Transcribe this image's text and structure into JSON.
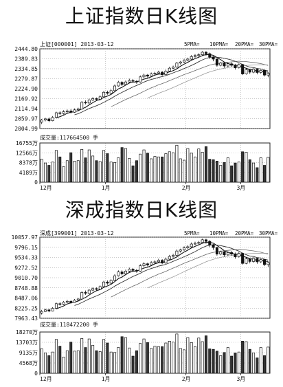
{
  "chart_data": [
    {
      "type": "candlestick",
      "title": "上证指数日K线图",
      "header_label": "上证[000001] 2013-03-12",
      "ma_legend": [
        "5PMA=",
        "10PMA=",
        "20PMA=",
        "30PMA="
      ],
      "price_ticks": [
        "2444.80",
        "2389.83",
        "2334.85",
        "2279.87",
        "2224.90",
        "2169.92",
        "2114.94",
        "2059.97",
        "2004.99"
      ],
      "ylim": [
        2004.99,
        2444.8
      ],
      "volume_title": "成交量:117664500 手",
      "volume_ticks": [
        "16755万",
        "12566万",
        "8378万",
        "4189万",
        "0"
      ],
      "volume_ylim": [
        0,
        16755
      ],
      "month_labels": [
        {
          "label": "12月",
          "index": 0
        },
        {
          "label": "1月",
          "index": 18
        },
        {
          "label": "2月",
          "index": 40
        },
        {
          "label": "3月",
          "index": 55
        }
      ],
      "candles": [
        [
          2040,
          2052,
          2030,
          2058
        ],
        [
          2052,
          2058,
          2045,
          2064
        ],
        [
          2058,
          2048,
          2040,
          2066
        ],
        [
          2048,
          2066,
          2045,
          2074
        ],
        [
          2066,
          2092,
          2062,
          2098
        ],
        [
          2092,
          2088,
          2080,
          2100
        ],
        [
          2088,
          2098,
          2082,
          2106
        ],
        [
          2098,
          2102,
          2090,
          2110
        ],
        [
          2102,
          2095,
          2088,
          2112
        ],
        [
          2095,
          2108,
          2092,
          2116
        ],
        [
          2108,
          2112,
          2100,
          2120
        ],
        [
          2112,
          2150,
          2110,
          2156
        ],
        [
          2150,
          2146,
          2138,
          2160
        ],
        [
          2146,
          2162,
          2140,
          2170
        ],
        [
          2162,
          2170,
          2156,
          2178
        ],
        [
          2170,
          2166,
          2158,
          2176
        ],
        [
          2166,
          2180,
          2160,
          2188
        ],
        [
          2180,
          2205,
          2176,
          2212
        ],
        [
          2205,
          2200,
          2192,
          2214
        ],
        [
          2200,
          2214,
          2196,
          2222
        ],
        [
          2214,
          2240,
          2210,
          2248
        ],
        [
          2240,
          2260,
          2236,
          2268
        ],
        [
          2260,
          2248,
          2240,
          2266
        ],
        [
          2248,
          2262,
          2244,
          2270
        ],
        [
          2262,
          2270,
          2256,
          2280
        ],
        [
          2270,
          2266,
          2258,
          2278
        ],
        [
          2266,
          2262,
          2252,
          2272
        ],
        [
          2262,
          2290,
          2258,
          2298
        ],
        [
          2290,
          2300,
          2284,
          2308
        ],
        [
          2300,
          2294,
          2286,
          2306
        ],
        [
          2294,
          2306,
          2290,
          2314
        ],
        [
          2306,
          2310,
          2300,
          2318
        ],
        [
          2310,
          2316,
          2304,
          2324
        ],
        [
          2316,
          2302,
          2296,
          2322
        ],
        [
          2302,
          2322,
          2298,
          2330
        ],
        [
          2322,
          2338,
          2318,
          2346
        ],
        [
          2338,
          2344,
          2332,
          2352
        ],
        [
          2344,
          2366,
          2340,
          2372
        ],
        [
          2366,
          2372,
          2358,
          2378
        ],
        [
          2372,
          2382,
          2366,
          2390
        ],
        [
          2382,
          2388,
          2376,
          2396
        ],
        [
          2388,
          2402,
          2382,
          2410
        ],
        [
          2402,
          2408,
          2396,
          2416
        ],
        [
          2408,
          2412,
          2400,
          2420
        ],
        [
          2412,
          2426,
          2406,
          2432
        ],
        [
          2426,
          2418,
          2406,
          2432
        ],
        [
          2418,
          2400,
          2390,
          2424
        ],
        [
          2400,
          2388,
          2376,
          2404
        ],
        [
          2388,
          2354,
          2346,
          2392
        ],
        [
          2354,
          2366,
          2348,
          2372
        ],
        [
          2366,
          2350,
          2340,
          2370
        ],
        [
          2350,
          2362,
          2344,
          2368
        ],
        [
          2362,
          2354,
          2346,
          2370
        ],
        [
          2354,
          2340,
          2330,
          2362
        ],
        [
          2340,
          2358,
          2336,
          2364
        ],
        [
          2358,
          2306,
          2300,
          2362
        ],
        [
          2306,
          2330,
          2302,
          2336
        ],
        [
          2330,
          2316,
          2306,
          2334
        ],
        [
          2316,
          2332,
          2310,
          2338
        ],
        [
          2332,
          2314,
          2304,
          2336
        ],
        [
          2314,
          2326,
          2308,
          2330
        ],
        [
          2326,
          2300,
          2292,
          2330
        ],
        [
          2300,
          2310,
          2288,
          2316
        ]
      ],
      "volumes": [
        9800,
        8200,
        7200,
        8600,
        13600,
        10800,
        6600,
        9200,
        12600,
        9000,
        9200,
        14000,
        10400,
        13800,
        11200,
        9200,
        8800,
        13600,
        12200,
        8600,
        8400,
        10400,
        14800,
        14400,
        10200,
        7000,
        9200,
        12000,
        13800,
        12400,
        10000,
        11000,
        10800,
        10800,
        12200,
        13000,
        12600,
        15800,
        10000,
        9400,
        14400,
        12400,
        10800,
        14200,
        12800,
        15200,
        9800,
        9600,
        9000,
        7200,
        8400,
        10400,
        7000,
        8200,
        8600,
        13000,
        12800,
        9600,
        8200,
        6200,
        10400,
        7200,
        10600
      ]
    },
    {
      "type": "candlestick",
      "title": "深成指数日K线图",
      "header_label": "深成[399001] 2013-03-12",
      "ma_legend": [
        "5PMA=",
        "10PMA=",
        "20PMA=",
        "30PMA="
      ],
      "price_ticks": [
        "10057.97",
        "9796.15",
        "9534.33",
        "9272.52",
        "9010.70",
        "8748.88",
        "8487.06",
        "8225.25",
        "7963.43"
      ],
      "ylim": [
        7963.43,
        10057.97
      ],
      "volume_title": "成交量:118472200 手",
      "volume_ticks": [
        "18270万",
        "13703万",
        "9135万",
        "4568万",
        "0"
      ],
      "volume_ylim": [
        0,
        18270
      ],
      "month_labels": [
        {
          "label": "12月",
          "index": 0
        },
        {
          "label": "1月",
          "index": 18
        },
        {
          "label": "2月",
          "index": 40
        },
        {
          "label": "3月",
          "index": 55
        }
      ],
      "candles": [
        [
          8100,
          8140,
          8060,
          8180
        ],
        [
          8140,
          8180,
          8120,
          8210
        ],
        [
          8180,
          8150,
          8120,
          8210
        ],
        [
          8150,
          8220,
          8140,
          8250
        ],
        [
          8220,
          8340,
          8200,
          8370
        ],
        [
          8340,
          8320,
          8290,
          8380
        ],
        [
          8320,
          8380,
          8300,
          8410
        ],
        [
          8380,
          8400,
          8350,
          8440
        ],
        [
          8400,
          8370,
          8340,
          8430
        ],
        [
          8370,
          8430,
          8360,
          8460
        ],
        [
          8430,
          8460,
          8410,
          8490
        ],
        [
          8460,
          8630,
          8450,
          8660
        ],
        [
          8630,
          8610,
          8570,
          8680
        ],
        [
          8610,
          8690,
          8590,
          8720
        ],
        [
          8690,
          8730,
          8660,
          8760
        ],
        [
          8730,
          8710,
          8670,
          8760
        ],
        [
          8710,
          8780,
          8690,
          8810
        ],
        [
          8780,
          8900,
          8760,
          8930
        ],
        [
          8900,
          8870,
          8830,
          8940
        ],
        [
          8870,
          8940,
          8850,
          8970
        ],
        [
          8940,
          9060,
          8920,
          9100
        ],
        [
          9060,
          9160,
          9040,
          9200
        ],
        [
          9160,
          9110,
          9070,
          9200
        ],
        [
          9110,
          9180,
          9090,
          9220
        ],
        [
          9180,
          9230,
          9150,
          9270
        ],
        [
          9230,
          9200,
          9160,
          9260
        ],
        [
          9200,
          9180,
          9140,
          9240
        ],
        [
          9180,
          9320,
          9160,
          9360
        ],
        [
          9320,
          9370,
          9290,
          9410
        ],
        [
          9370,
          9340,
          9300,
          9400
        ],
        [
          9340,
          9400,
          9320,
          9440
        ],
        [
          9400,
          9420,
          9370,
          9460
        ],
        [
          9420,
          9460,
          9390,
          9500
        ],
        [
          9460,
          9390,
          9360,
          9490
        ],
        [
          9390,
          9490,
          9370,
          9530
        ],
        [
          9490,
          9560,
          9470,
          9600
        ],
        [
          9560,
          9590,
          9530,
          9630
        ],
        [
          9590,
          9700,
          9570,
          9740
        ],
        [
          9700,
          9730,
          9660,
          9760
        ],
        [
          9730,
          9780,
          9700,
          9820
        ],
        [
          9780,
          9810,
          9750,
          9850
        ],
        [
          9810,
          9880,
          9780,
          9920
        ],
        [
          9880,
          9900,
          9850,
          9940
        ],
        [
          9900,
          9920,
          9860,
          9960
        ],
        [
          9920,
          9990,
          9890,
          10020
        ],
        [
          9990,
          9950,
          9890,
          10020
        ],
        [
          9950,
          9860,
          9800,
          9980
        ],
        [
          9860,
          9790,
          9730,
          9880
        ],
        [
          9790,
          9620,
          9580,
          9810
        ],
        [
          9620,
          9680,
          9590,
          9710
        ],
        [
          9680,
          9600,
          9550,
          9700
        ],
        [
          9600,
          9660,
          9570,
          9690
        ],
        [
          9660,
          9620,
          9580,
          9700
        ],
        [
          9620,
          9550,
          9500,
          9660
        ],
        [
          9550,
          9640,
          9530,
          9670
        ],
        [
          9640,
          9380,
          9350,
          9660
        ],
        [
          9380,
          9500,
          9360,
          9530
        ],
        [
          9500,
          9430,
          9380,
          9520
        ],
        [
          9430,
          9510,
          9400,
          9540
        ],
        [
          9510,
          9420,
          9370,
          9530
        ],
        [
          9420,
          9480,
          9390,
          9500
        ],
        [
          9480,
          9350,
          9310,
          9490
        ],
        [
          9350,
          9400,
          9290,
          9430
        ]
      ],
      "volumes": [
        10800,
        9000,
        7800,
        9400,
        15000,
        12000,
        7200,
        10000,
        13800,
        9800,
        10000,
        15400,
        11400,
        15200,
        12400,
        10000,
        9600,
        15000,
        13400,
        9400,
        9200,
        11400,
        16200,
        15800,
        11200,
        7600,
        10000,
        13200,
        15200,
        13600,
        11000,
        12000,
        11800,
        11800,
        13400,
        14200,
        13800,
        17400,
        11000,
        10400,
        15800,
        13600,
        11800,
        15600,
        14000,
        16600,
        10800,
        10600,
        9800,
        7800,
        9200,
        11400,
        7600,
        9000,
        9400,
        14200,
        14000,
        10600,
        9000,
        6800,
        11400,
        7800,
        11600
      ]
    }
  ]
}
